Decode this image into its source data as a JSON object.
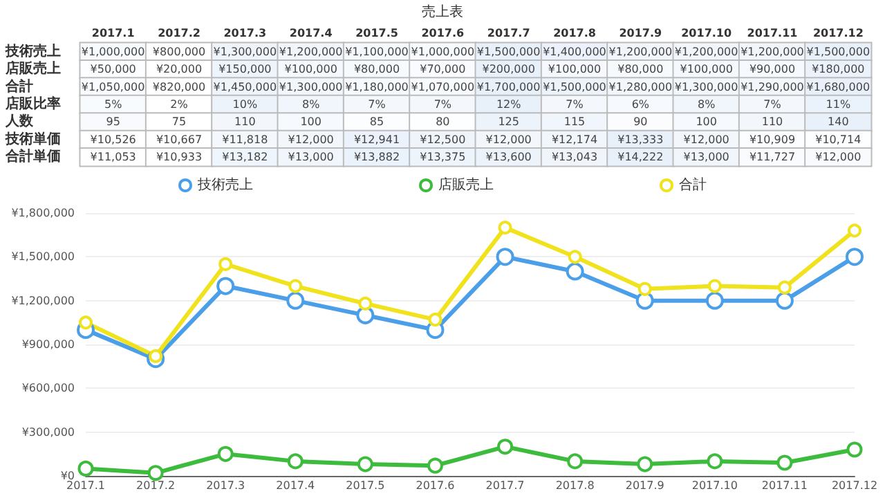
{
  "chart_data": [
    {
      "type": "heatmap",
      "title": "売上表",
      "color": "#ffffff",
      "categories": [
        "2017.1",
        "2017.2",
        "2017.3",
        "2017.4",
        "2017.5",
        "2017.6",
        "2017.7",
        "2017.8",
        "2017.9",
        "2017.10",
        "2017.11",
        "2017.12"
      ],
      "y_categories": [
        "技術売上",
        "店販売上",
        "合計",
        "店販比率",
        "人数",
        "技術単価",
        "合計単価"
      ],
      "cells": [
        [
          1000000,
          800000,
          1300000,
          1200000,
          1100000,
          1000000,
          1500000,
          1400000,
          1200000,
          1200000,
          1200000,
          1500000
        ],
        [
          50000,
          20000,
          150000,
          100000,
          80000,
          70000,
          200000,
          100000,
          80000,
          100000,
          90000,
          180000
        ],
        [
          1050000,
          820000,
          1450000,
          1300000,
          1180000,
          1070000,
          1700000,
          1500000,
          1280000,
          1300000,
          1290000,
          1680000
        ],
        [
          5,
          2,
          10,
          8,
          7,
          7,
          12,
          7,
          6,
          8,
          7,
          11
        ],
        [
          95,
          75,
          110,
          100,
          85,
          80,
          125,
          115,
          90,
          100,
          110,
          140
        ],
        [
          10526,
          10667,
          11818,
          12000,
          12941,
          12500,
          12000,
          12174,
          13333,
          12000,
          10909,
          10714
        ],
        [
          11053,
          10933,
          13182,
          13000,
          13882,
          13375,
          13600,
          13043,
          14222,
          13000,
          11727,
          12000
        ]
      ],
      "cell_labels": [
        [
          "¥1,000,000",
          "¥800,000",
          "¥1,300,000",
          "¥1,200,000",
          "¥1,100,000",
          "¥1,000,000",
          "¥1,500,000",
          "¥1,400,000",
          "¥1,200,000",
          "¥1,200,000",
          "¥1,200,000",
          "¥1,500,000"
        ],
        [
          "¥50,000",
          "¥20,000",
          "¥150,000",
          "¥100,000",
          "¥80,000",
          "¥70,000",
          "¥200,000",
          "¥100,000",
          "¥80,000",
          "¥100,000",
          "¥90,000",
          "¥180,000"
        ],
        [
          "¥1,050,000",
          "¥820,000",
          "¥1,450,000",
          "¥1,300,000",
          "¥1,180,000",
          "¥1,070,000",
          "¥1,700,000",
          "¥1,500,000",
          "¥1,280,000",
          "¥1,300,000",
          "¥1,290,000",
          "¥1,680,000"
        ],
        [
          "5%",
          "2%",
          "10%",
          "8%",
          "7%",
          "7%",
          "12%",
          "7%",
          "6%",
          "8%",
          "7%",
          "11%"
        ],
        [
          "95",
          "75",
          "110",
          "100",
          "85",
          "80",
          "125",
          "115",
          "90",
          "100",
          "110",
          "140"
        ],
        [
          "¥10,526",
          "¥10,667",
          "¥11,818",
          "¥12,000",
          "¥12,941",
          "¥12,500",
          "¥12,000",
          "¥12,174",
          "¥13,333",
          "¥12,000",
          "¥10,909",
          "¥10,714"
        ],
        [
          "¥11,053",
          "¥10,933",
          "¥13,182",
          "¥13,000",
          "¥13,882",
          "¥13,375",
          "¥13,600",
          "¥13,043",
          "¥14,222",
          "¥13,000",
          "¥11,727",
          "¥12,000"
        ]
      ]
    },
    {
      "type": "line",
      "legend": "top",
      "grid": "y",
      "marker": "circle",
      "line_style": "solid",
      "categories": [
        "2017.1",
        "2017.2",
        "2017.3",
        "2017.4",
        "2017.5",
        "2017.6",
        "2017.7",
        "2017.8",
        "2017.9",
        "2017.10",
        "2017.11",
        "2017.12"
      ],
      "ylim": [
        0,
        1800000
      ],
      "yticks": [
        {
          "value": 0,
          "label": "¥0"
        },
        {
          "value": 300000,
          "label": "¥300,000"
        },
        {
          "value": 600000,
          "label": "¥600,000"
        },
        {
          "value": 900000,
          "label": "¥900,000"
        },
        {
          "value": 1200000,
          "label": "¥1,200,000"
        },
        {
          "value": 1500000,
          "label": "¥1,500,000"
        },
        {
          "value": 1800000,
          "label": "¥1,800,000"
        }
      ],
      "series": [
        {
          "name": "技術売上",
          "color": "#4a9fe8",
          "values": [
            1000000,
            800000,
            1300000,
            1200000,
            1100000,
            1000000,
            1500000,
            1400000,
            1200000,
            1200000,
            1200000,
            1500000
          ]
        },
        {
          "name": "店販売上",
          "color": "#3dbb3d",
          "values": [
            50000,
            20000,
            150000,
            100000,
            80000,
            70000,
            200000,
            100000,
            80000,
            100000,
            90000,
            180000
          ]
        },
        {
          "name": "合計",
          "color": "#f0e21c",
          "values": [
            1050000,
            820000,
            1450000,
            1300000,
            1180000,
            1070000,
            1700000,
            1500000,
            1280000,
            1300000,
            1290000,
            1680000
          ]
        }
      ]
    }
  ]
}
